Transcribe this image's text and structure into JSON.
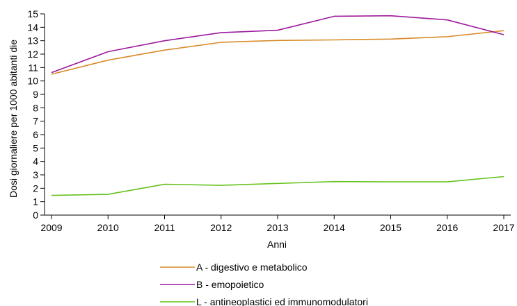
{
  "chart_data": {
    "type": "line",
    "xlabel": "Anni",
    "ylabel": "Dosi giornaliere per 1000 abitanti die",
    "x": [
      2009,
      2010,
      2011,
      2012,
      2013,
      2014,
      2015,
      2016,
      2017
    ],
    "xlim": [
      2009,
      2017
    ],
    "ylim": [
      0,
      15
    ],
    "yticks": [
      0,
      1,
      2,
      3,
      4,
      5,
      6,
      7,
      8,
      9,
      10,
      11,
      12,
      13,
      14,
      15
    ],
    "grid": false,
    "legend_position": "bottom",
    "series": [
      {
        "name": "A - digestivo e metabolico",
        "color": "#d98a29",
        "values": [
          10.5,
          11.55,
          12.3,
          12.88,
          13.02,
          13.06,
          13.12,
          13.3,
          13.75
        ]
      },
      {
        "name": "B - emopoietico",
        "color": "#9b1a9c",
        "values": [
          10.62,
          12.18,
          13.0,
          13.6,
          13.78,
          14.82,
          14.86,
          14.55,
          13.45
        ]
      },
      {
        "name": "L - antineoplastici ed immunomodulatori",
        "color": "#66c21d",
        "values": [
          1.47,
          1.55,
          2.3,
          2.22,
          2.36,
          2.5,
          2.48,
          2.48,
          2.87
        ]
      }
    ]
  }
}
